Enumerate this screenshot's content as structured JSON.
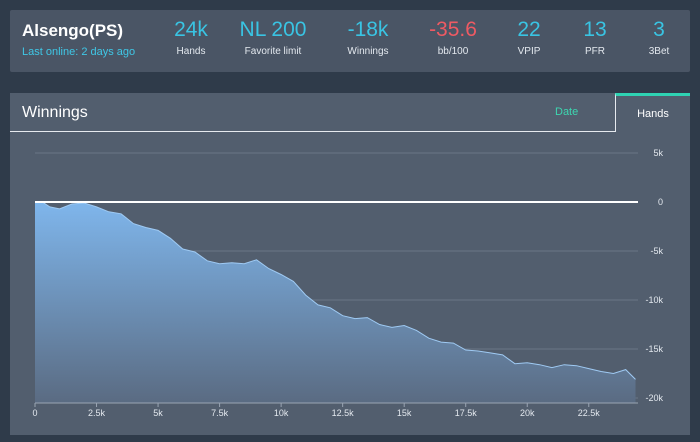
{
  "player": {
    "name": "Alsengo(PS)",
    "last_online": "Last online: 2 days ago"
  },
  "stats": [
    {
      "value": "24k",
      "label": "Hands",
      "negative": false
    },
    {
      "value": "NL 200",
      "label": "Favorite limit",
      "negative": false
    },
    {
      "value": "-18k",
      "label": "Winnings",
      "negative": false
    },
    {
      "value": "-35.6",
      "label": "bb/100",
      "negative": true
    },
    {
      "value": "22",
      "label": "VPIP",
      "negative": false
    },
    {
      "value": "13",
      "label": "PFR",
      "negative": false
    },
    {
      "value": "3",
      "label": "3Bet",
      "negative": false
    }
  ],
  "winnings_card": {
    "title": "Winnings",
    "tabs": {
      "date": "Date",
      "hands": "Hands"
    },
    "active_tab": "Hands"
  },
  "colors": {
    "accent": "#39c4e3",
    "negative": "#ee5a63",
    "tab_active": "#2ed3b3",
    "area_top": "#7fb6ec",
    "area_bottom": "#5a6b82"
  },
  "chart_data": {
    "type": "area",
    "title": "",
    "xlabel": "",
    "ylabel": "",
    "x_ticks": [
      "0",
      "2.5k",
      "5k",
      "7.5k",
      "10k",
      "12.5k",
      "15k",
      "17.5k",
      "20k",
      "22.5k"
    ],
    "y_ticks": [
      "5k",
      "0",
      "-5k",
      "-10k",
      "-15k",
      "-20k"
    ],
    "xlim": [
      0,
      24500
    ],
    "ylim": [
      -20000,
      5000
    ],
    "grid": true,
    "reference_line": 0,
    "series": [
      {
        "x": [
          0,
          300,
          600,
          1000,
          1500,
          2000,
          2500,
          3000,
          3500,
          4000,
          4500,
          5000,
          5500,
          6000,
          6500,
          7000,
          7500,
          8000,
          8500,
          9000,
          9500,
          10000,
          10500,
          11000,
          11500,
          12000,
          12500,
          13000,
          13500,
          14000,
          14500,
          15000,
          15500,
          16000,
          16500,
          17000,
          17500,
          18000,
          18500,
          19000,
          19500,
          20000,
          20500,
          21000,
          21500,
          22000,
          22500,
          23000,
          23500,
          24000,
          24400
        ],
        "y": [
          0,
          0,
          -500,
          -700,
          -200,
          -100,
          -500,
          -1000,
          -1200,
          -2200,
          -2600,
          -2900,
          -3700,
          -4800,
          -5100,
          -6000,
          -6300,
          -6200,
          -6300,
          -5900,
          -6800,
          -7400,
          -8100,
          -9500,
          -10500,
          -10800,
          -11600,
          -11900,
          -11800,
          -12500,
          -12800,
          -12600,
          -13100,
          -13900,
          -14300,
          -14400,
          -15100,
          -15200,
          -15400,
          -15600,
          -16500,
          -16400,
          -16600,
          -16900,
          -16600,
          -16700,
          -17000,
          -17300,
          -17500,
          -17100,
          -18100
        ]
      }
    ]
  }
}
